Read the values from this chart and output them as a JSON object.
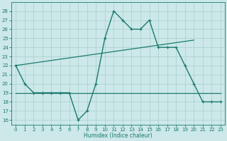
{
  "x": [
    0,
    1,
    2,
    3,
    4,
    5,
    6,
    7,
    8,
    9,
    10,
    11,
    12,
    13,
    14,
    15,
    16,
    17,
    18,
    19,
    20,
    21,
    22,
    23
  ],
  "y_main": [
    22,
    20,
    19,
    19,
    19,
    19,
    19,
    16,
    17,
    20,
    25,
    28,
    27,
    26,
    26,
    27,
    24,
    24,
    24,
    22,
    20,
    18,
    18,
    18
  ],
  "line_color": "#1a7a6e",
  "bg_color": "#cce8e8",
  "grid_color": "#aacece",
  "xlabel": "Humidex (Indice chaleur)",
  "ylim": [
    15.5,
    29
  ],
  "xlim": [
    -0.5,
    23.5
  ],
  "yticks": [
    16,
    17,
    18,
    19,
    20,
    21,
    22,
    23,
    24,
    25,
    26,
    27,
    28
  ],
  "xticks": [
    0,
    1,
    2,
    3,
    4,
    5,
    6,
    7,
    8,
    9,
    10,
    11,
    12,
    13,
    14,
    15,
    16,
    17,
    18,
    19,
    20,
    21,
    22,
    23
  ],
  "upper_line_x": [
    0,
    20
  ],
  "upper_line_y": [
    22.0,
    24.8
  ],
  "lower_line_x": [
    0,
    23
  ],
  "lower_line_y": [
    19.0,
    19.0
  ]
}
